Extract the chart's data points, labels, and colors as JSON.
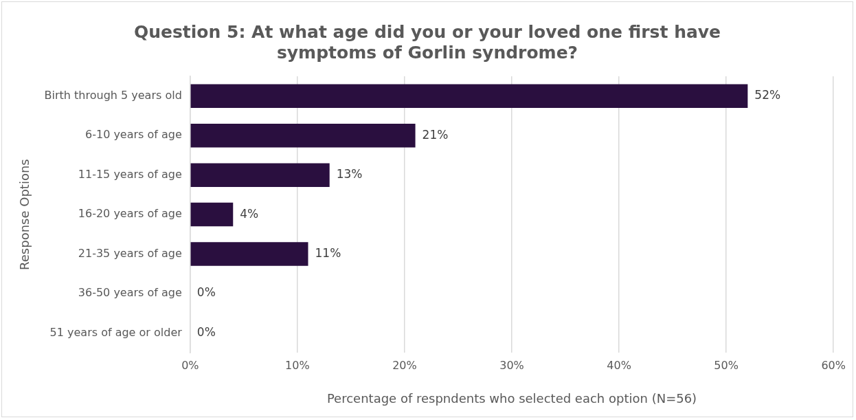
{
  "chart_data": {
    "type": "bar",
    "orientation": "horizontal",
    "title": "Question 5: At what age did you or your loved one first have symptoms of Gorlin syndrome?",
    "xlabel": "Percentage of respndents who selected each option (N=56)",
    "ylabel": "Response Options",
    "categories": [
      "Birth through 5 years old",
      "6-10 years of age",
      "11-15 years of age",
      "16-20 years of age",
      "21-35 years of age",
      "36-50 years of age",
      "51 years of age or older"
    ],
    "values": [
      52,
      21,
      13,
      4,
      11,
      0,
      0
    ],
    "value_labels": [
      "52%",
      "21%",
      "13%",
      "4%",
      "11%",
      "0%",
      "0%"
    ],
    "color": "#2a0f3f",
    "xlim": [
      0,
      60
    ],
    "xticks": [
      {
        "value": 0,
        "label": "0%"
      },
      {
        "value": 10,
        "label": "10%"
      },
      {
        "value": 20,
        "label": "20%"
      },
      {
        "value": 30,
        "label": "30%"
      },
      {
        "value": 40,
        "label": "40%"
      },
      {
        "value": 50,
        "label": "50%"
      },
      {
        "value": 60,
        "label": "60%"
      }
    ],
    "grid": "x",
    "legend": false
  }
}
